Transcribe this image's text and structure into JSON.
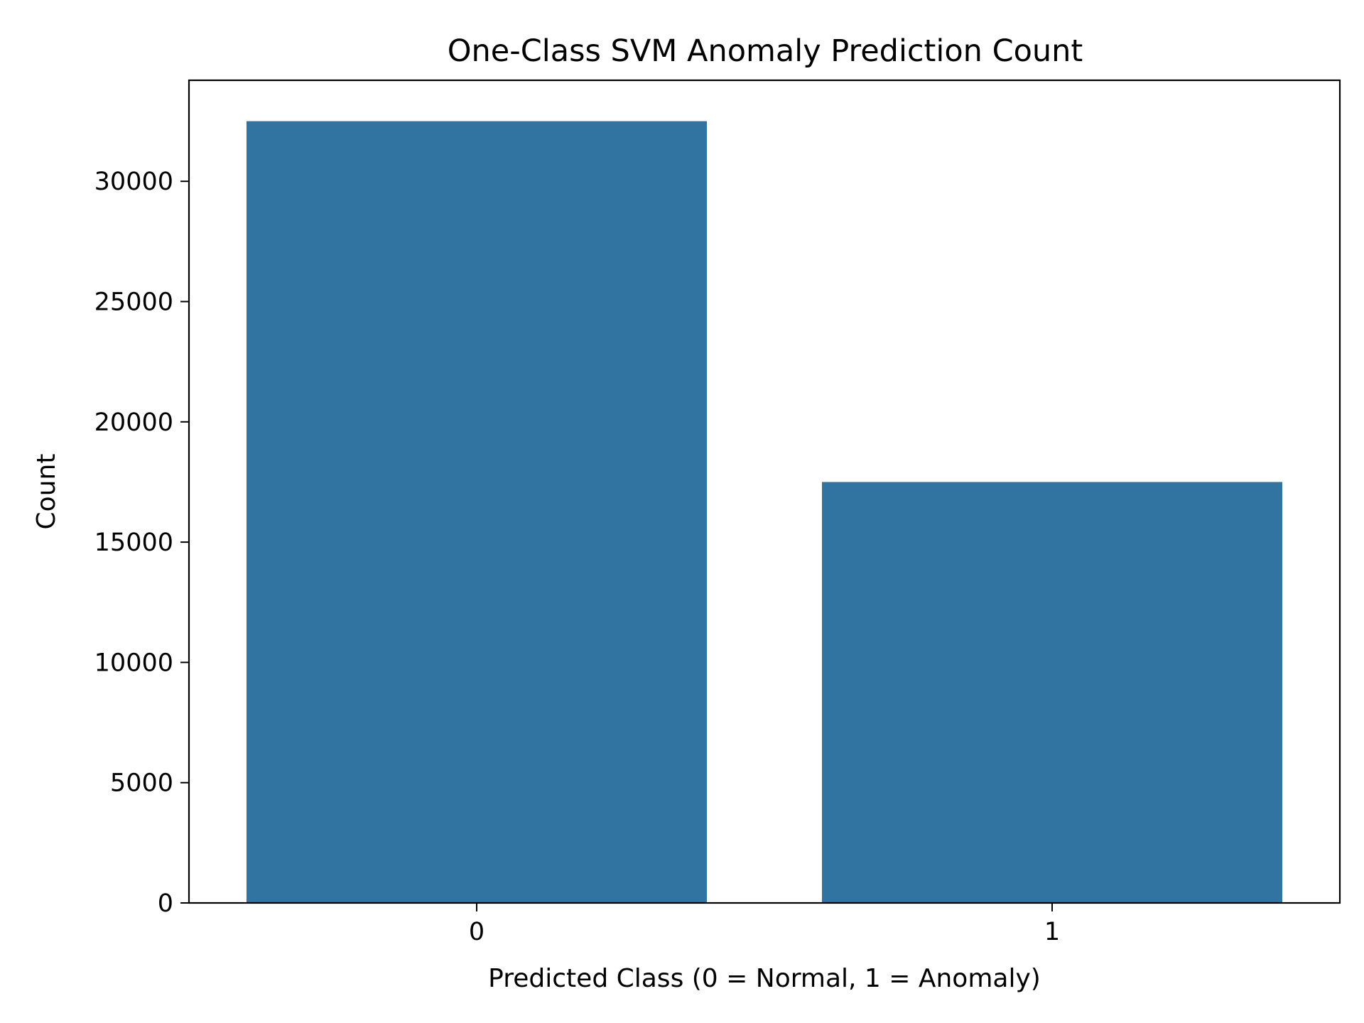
{
  "chart_data": {
    "type": "bar",
    "title": "One-Class SVM Anomaly Prediction Count",
    "xlabel": "Predicted Class (0 = Normal, 1 = Anomaly)",
    "ylabel": "Count",
    "categories": [
      "0",
      "1"
    ],
    "values": [
      32500,
      17500
    ],
    "ylim": [
      0,
      34200
    ],
    "yticks": [
      0,
      5000,
      10000,
      15000,
      20000,
      25000,
      30000
    ],
    "grid": false,
    "legend": "none",
    "bar_color": "#3274a1"
  }
}
